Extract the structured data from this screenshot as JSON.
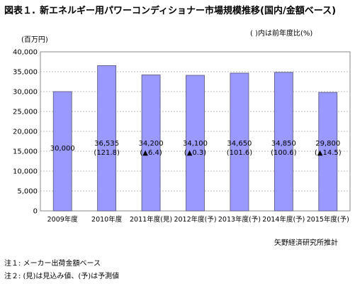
{
  "title": {
    "fig": "図表１.",
    "text": "新エネルギー用パワーコンディショナー市場規模推移(国内/金額ベース)"
  },
  "paren_note": "( )内は前年度比(%)",
  "unit_label": "(百万円)",
  "source": "矢野経済研究所推計",
  "footnotes": [
    "注１: メーカー出荷金額ベース",
    "注２: (見)は見込み値、(予)は予測値"
  ],
  "colors": {
    "bar_fill": "#9999ff",
    "bar_stroke": "#555577",
    "grid": "#aaaaaa"
  },
  "chart_data": {
    "type": "bar",
    "categories": [
      "2009年度",
      "2010年度",
      "2011年度(見)",
      "2012年度(予)",
      "2013年度(予)",
      "2014年度(予)",
      "2015年度(予)"
    ],
    "values": [
      30000,
      36535,
      34200,
      34100,
      34650,
      34850,
      29800
    ],
    "value_labels": [
      "30,000",
      "36,535",
      "34,200",
      "34,100",
      "34,650",
      "34,850",
      "29,800"
    ],
    "growth_labels": [
      "",
      "(121.8)",
      "(▲6.4)",
      "(▲0.3)",
      "(101.6)",
      "(100.6)",
      "(▲14.5)"
    ],
    "yticks": [
      0,
      5000,
      10000,
      15000,
      20000,
      25000,
      30000,
      35000,
      40000
    ],
    "ytick_labels": [
      "0",
      "5,000",
      "10,000",
      "15,000",
      "20,000",
      "25,000",
      "30,000",
      "35,000",
      "40,000"
    ],
    "ylim": [
      0,
      40000
    ],
    "grid": true
  }
}
